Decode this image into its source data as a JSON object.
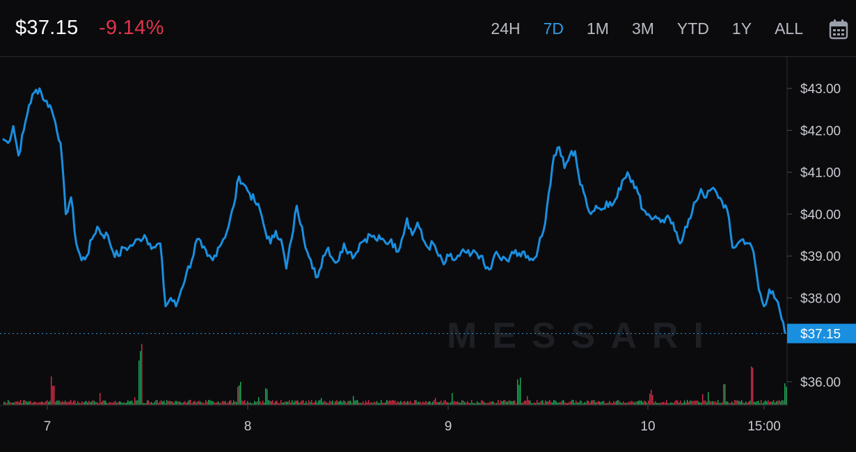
{
  "header": {
    "price": "$37.15",
    "change": "-9.14%",
    "ranges": [
      "24H",
      "7D",
      "1M",
      "3M",
      "YTD",
      "1Y",
      "ALL"
    ],
    "active_range": "7D",
    "calendar_icon": "calendar-icon"
  },
  "watermark": "MESSARI",
  "colors": {
    "line": "#1a8fe0",
    "negative": "#e0344d",
    "active": "#2f9de6",
    "vol_up": "#1fae5b",
    "vol_down": "#d9304a"
  },
  "chart_data": {
    "type": "line",
    "x_ticks": [
      "7",
      "8",
      "9",
      "10",
      "15:00"
    ],
    "y_ticks": [
      "$43.00",
      "$42.00",
      "$41.00",
      "$40.00",
      "$39.00",
      "$38.00",
      "$36.00"
    ],
    "y_tick_values": [
      43,
      42,
      41,
      40,
      39,
      38,
      36
    ],
    "ylim": [
      35.45,
      43.75
    ],
    "last_price_label": "$37.15",
    "last_price": 37.15,
    "series": [
      {
        "values": [
          41.8,
          41.7,
          42.1,
          41.4,
          42.0,
          42.6,
          42.9,
          43.0,
          42.7,
          42.6,
          42.2,
          41.7,
          40.0,
          40.4,
          39.3,
          38.9,
          39.0,
          39.4,
          39.7,
          39.5,
          39.5,
          39.1,
          39.0,
          39.2,
          39.2,
          39.3,
          39.4,
          39.5,
          39.3,
          39.2,
          39.3,
          37.8,
          38.0,
          37.8,
          38.2,
          38.6,
          38.9,
          39.4,
          39.2,
          39.0,
          38.9,
          39.2,
          39.4,
          39.7,
          40.2,
          40.9,
          40.7,
          40.5,
          40.3,
          40.1,
          39.6,
          39.3,
          39.6,
          39.4,
          38.7,
          39.4,
          40.2,
          39.7,
          39.1,
          38.7,
          38.5,
          39.0,
          39.2,
          38.9,
          38.9,
          39.3,
          39.1,
          39.0,
          39.3,
          39.4,
          39.5,
          39.4,
          39.4,
          39.3,
          39.4,
          39.1,
          39.4,
          39.9,
          39.5,
          39.8,
          39.4,
          39.2,
          39.3,
          39.0,
          38.8,
          39.0,
          38.9,
          39.0,
          39.1,
          39.0,
          39.1,
          39.0,
          38.7,
          38.7,
          39.1,
          38.9,
          38.9,
          39.1,
          39.0,
          39.1,
          39.0,
          38.9,
          39.2,
          39.6,
          40.5,
          41.4,
          41.6,
          41.1,
          41.4,
          41.5,
          40.7,
          40.4,
          40.0,
          40.2,
          40.1,
          40.3,
          40.2,
          40.4,
          40.8,
          41.0,
          40.8,
          40.5,
          40.1,
          40.0,
          39.9,
          39.9,
          39.8,
          39.9,
          39.6,
          39.3,
          39.7,
          39.9,
          40.3,
          40.6,
          40.4,
          40.6,
          40.5,
          40.3,
          40.1,
          39.2,
          39.3,
          39.4,
          39.3,
          39.1,
          38.2,
          37.8,
          38.2,
          38.0,
          37.7,
          37.15
        ]
      }
    ],
    "volume_scale_max": 1.0
  }
}
